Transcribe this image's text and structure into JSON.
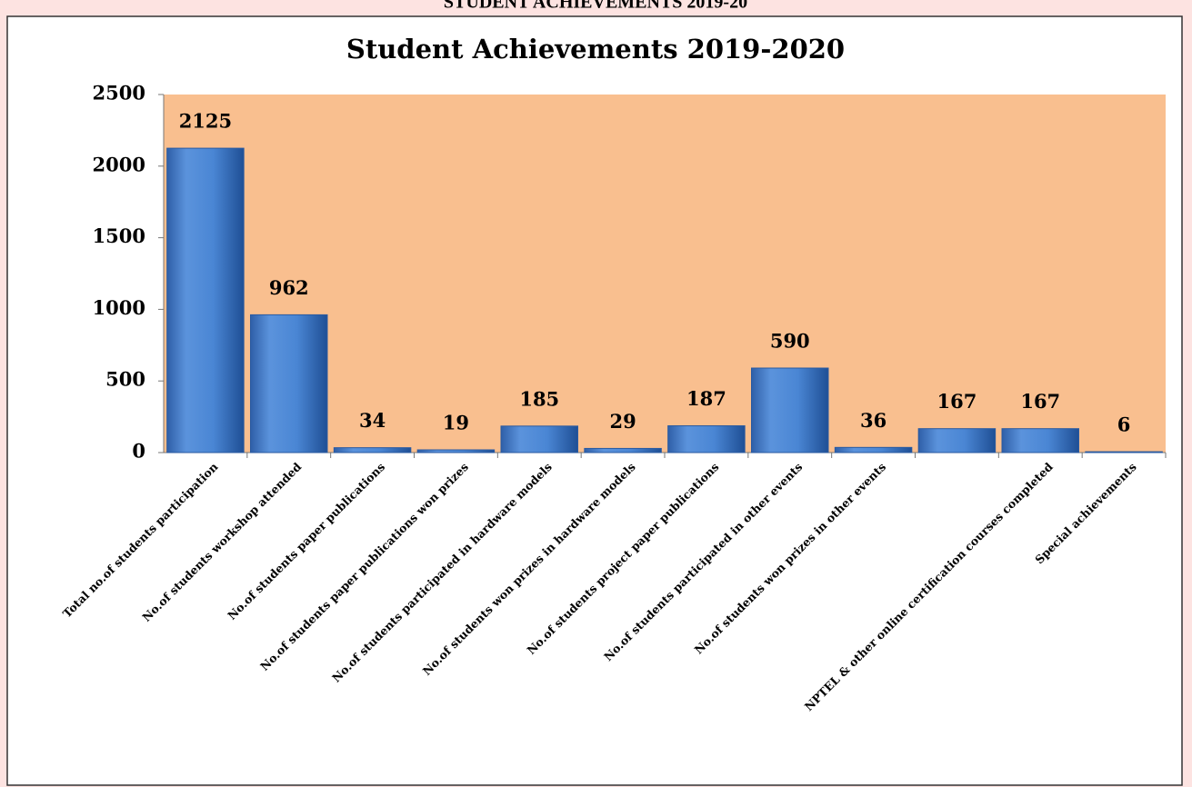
{
  "header": {
    "title": "STUDENT ACHIEVEMENTS 2019-20"
  },
  "chart_data": {
    "type": "bar",
    "title": "Student Achievements 2019-2020",
    "categories": [
      "Total no.of students participation",
      "No.of students workshop attended",
      "No.of students  paper publications",
      "No.of students  paper publications won prizes",
      "No.of students  participated in hardware  models",
      "No.of students  won prizes in hardware  models",
      "No.of students project paper publications",
      "No.of students participated in other events",
      "No.of students won prizes in other events",
      null,
      "NPTEL & other online certification courses completed",
      "Special achievements"
    ],
    "values": [
      2125,
      962,
      34,
      19,
      185,
      29,
      187,
      590,
      36,
      167,
      167,
      6
    ],
    "color": "#4a86d4",
    "plot_background": "#f9bf8f",
    "ylim": [
      0,
      2500
    ],
    "yticks": [
      0,
      500,
      1000,
      1500,
      2000,
      2500
    ],
    "grid": false
  }
}
